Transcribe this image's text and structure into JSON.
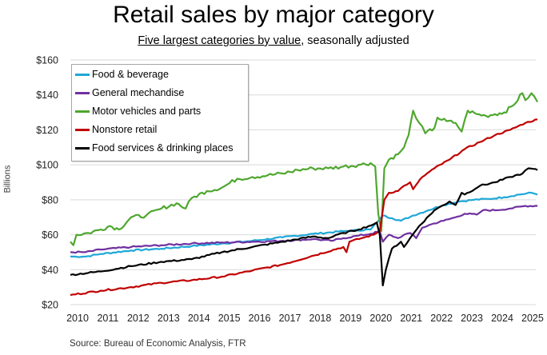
{
  "chart_data": {
    "type": "line",
    "title": "Retail sales by major category",
    "subtitle_underlined": "Five largest categories by value",
    "subtitle_rest": ", seasonally adjusted",
    "xlabel": "",
    "ylabel": "Billions",
    "source": "Source: Bureau of Economic Analysis, FTR",
    "ylim": [
      20,
      160
    ],
    "xlim": [
      2010.0,
      2025.4
    ],
    "y_ticks": [
      20,
      40,
      60,
      80,
      100,
      120,
      140,
      160
    ],
    "y_tick_labels": [
      "$20",
      "$40",
      "$60",
      "$80",
      "$100",
      "$120",
      "$140",
      "$160"
    ],
    "x_tick_labels": [
      "2010",
      "2011",
      "2012",
      "2013",
      "2014",
      "2015",
      "2016",
      "2017",
      "2018",
      "2019",
      "2020",
      "2021",
      "2022",
      "2023",
      "2024",
      "2025"
    ],
    "grid": true,
    "legend_position": "top-left",
    "series": [
      {
        "name": "Food & beverage",
        "color": "#1ea7d8",
        "points": [
          [
            2010.0,
            47.5
          ],
          [
            2010.5,
            47.5
          ],
          [
            2011.0,
            49
          ],
          [
            2012.0,
            51
          ],
          [
            2013.0,
            52
          ],
          [
            2014.0,
            53.5
          ],
          [
            2015.0,
            55
          ],
          [
            2016.0,
            56.5
          ],
          [
            2017.0,
            58.5
          ],
          [
            2018.0,
            60.5
          ],
          [
            2019.0,
            62
          ],
          [
            2019.9,
            63
          ],
          [
            2020.2,
            69
          ],
          [
            2020.3,
            71
          ],
          [
            2020.6,
            69.5
          ],
          [
            2020.9,
            68
          ],
          [
            2021.3,
            71
          ],
          [
            2021.8,
            74
          ],
          [
            2022.3,
            77
          ],
          [
            2022.8,
            79
          ],
          [
            2023.3,
            80
          ],
          [
            2023.8,
            80.5
          ],
          [
            2024.3,
            81.5
          ],
          [
            2024.8,
            83
          ],
          [
            2025.2,
            84
          ],
          [
            2025.4,
            83
          ]
        ]
      },
      {
        "name": "General mechandise",
        "color": "#7030a0",
        "points": [
          [
            2010.0,
            50
          ],
          [
            2010.5,
            50
          ],
          [
            2011.0,
            51.5
          ],
          [
            2012.0,
            53
          ],
          [
            2013.0,
            54
          ],
          [
            2014.0,
            55
          ],
          [
            2015.0,
            55.5
          ],
          [
            2016.0,
            56
          ],
          [
            2017.0,
            56.5
          ],
          [
            2018.0,
            57.5
          ],
          [
            2018.6,
            56.5
          ],
          [
            2019.0,
            58
          ],
          [
            2019.5,
            59.5
          ],
          [
            2019.9,
            60.5
          ],
          [
            2020.2,
            62
          ],
          [
            2020.3,
            56
          ],
          [
            2020.5,
            60
          ],
          [
            2020.8,
            58
          ],
          [
            2021.0,
            60
          ],
          [
            2021.2,
            61
          ],
          [
            2021.4,
            58
          ],
          [
            2021.6,
            64
          ],
          [
            2021.9,
            66
          ],
          [
            2022.3,
            68
          ],
          [
            2022.7,
            70
          ],
          [
            2023.0,
            72
          ],
          [
            2023.4,
            71.5
          ],
          [
            2023.6,
            74
          ],
          [
            2024.0,
            74
          ],
          [
            2024.5,
            75
          ],
          [
            2025.0,
            76.5
          ],
          [
            2025.4,
            76.5
          ]
        ]
      },
      {
        "name": "Motor vehicles and parts",
        "color": "#4ea72e",
        "points": [
          [
            2010.0,
            56
          ],
          [
            2010.1,
            54
          ],
          [
            2010.2,
            60
          ],
          [
            2010.6,
            61
          ],
          [
            2011.0,
            63
          ],
          [
            2011.3,
            65
          ],
          [
            2011.6,
            63
          ],
          [
            2012.0,
            70
          ],
          [
            2012.5,
            71
          ],
          [
            2013.0,
            75
          ],
          [
            2013.5,
            78
          ],
          [
            2013.8,
            75
          ],
          [
            2014.0,
            81
          ],
          [
            2014.5,
            85
          ],
          [
            2015.0,
            87
          ],
          [
            2015.5,
            92
          ],
          [
            2016.0,
            93
          ],
          [
            2016.5,
            94
          ],
          [
            2017.0,
            95
          ],
          [
            2017.5,
            97
          ],
          [
            2018.0,
            98
          ],
          [
            2018.5,
            98
          ],
          [
            2019.0,
            99
          ],
          [
            2019.5,
            100
          ],
          [
            2019.9,
            101
          ],
          [
            2020.05,
            99
          ],
          [
            2020.15,
            72
          ],
          [
            2020.25,
            62
          ],
          [
            2020.35,
            98
          ],
          [
            2020.5,
            103
          ],
          [
            2020.8,
            106
          ],
          [
            2021.0,
            110
          ],
          [
            2021.15,
            117
          ],
          [
            2021.3,
            131
          ],
          [
            2021.5,
            124
          ],
          [
            2021.7,
            118
          ],
          [
            2022.0,
            121
          ],
          [
            2022.1,
            127
          ],
          [
            2022.4,
            125
          ],
          [
            2022.7,
            124
          ],
          [
            2022.9,
            119
          ],
          [
            2023.1,
            131
          ],
          [
            2023.4,
            129
          ],
          [
            2023.7,
            128
          ],
          [
            2024.0,
            129
          ],
          [
            2024.3,
            130
          ],
          [
            2024.6,
            134
          ],
          [
            2024.9,
            141
          ],
          [
            2025.0,
            137
          ],
          [
            2025.2,
            141
          ],
          [
            2025.4,
            136
          ]
        ]
      },
      {
        "name": "Nonstore retail",
        "color": "#c00000",
        "points": [
          [
            2010.0,
            25.5
          ],
          [
            2011.0,
            28
          ],
          [
            2012.0,
            30
          ],
          [
            2013.0,
            32.5
          ],
          [
            2014.0,
            34
          ],
          [
            2015.0,
            36
          ],
          [
            2016.0,
            39.5
          ],
          [
            2017.0,
            43
          ],
          [
            2018.0,
            48
          ],
          [
            2019.0,
            53
          ],
          [
            2019.1,
            50
          ],
          [
            2019.2,
            56
          ],
          [
            2019.6,
            58
          ],
          [
            2020.0,
            60
          ],
          [
            2020.2,
            62
          ],
          [
            2020.35,
            80
          ],
          [
            2020.5,
            84
          ],
          [
            2020.8,
            85
          ],
          [
            2021.0,
            88
          ],
          [
            2021.2,
            90
          ],
          [
            2021.3,
            86
          ],
          [
            2021.6,
            93
          ],
          [
            2022.0,
            98
          ],
          [
            2022.5,
            103
          ],
          [
            2023.0,
            109
          ],
          [
            2023.5,
            113
          ],
          [
            2024.0,
            117
          ],
          [
            2024.5,
            120
          ],
          [
            2025.0,
            124
          ],
          [
            2025.4,
            126
          ]
        ]
      },
      {
        "name": "Food services & drinking places",
        "color": "#000000",
        "points": [
          [
            2010.0,
            37
          ],
          [
            2011.0,
            39
          ],
          [
            2012.0,
            42
          ],
          [
            2013.0,
            44.5
          ],
          [
            2014.0,
            46
          ],
          [
            2015.0,
            50
          ],
          [
            2016.0,
            53
          ],
          [
            2017.0,
            56
          ],
          [
            2018.0,
            59
          ],
          [
            2018.5,
            58
          ],
          [
            2019.0,
            61
          ],
          [
            2019.5,
            63
          ],
          [
            2020.0,
            66
          ],
          [
            2020.1,
            67
          ],
          [
            2020.2,
            60
          ],
          [
            2020.3,
            31
          ],
          [
            2020.4,
            40
          ],
          [
            2020.6,
            52
          ],
          [
            2020.9,
            56
          ],
          [
            2021.0,
            53
          ],
          [
            2021.2,
            58
          ],
          [
            2021.5,
            65
          ],
          [
            2022.0,
            74
          ],
          [
            2022.5,
            79
          ],
          [
            2022.7,
            77
          ],
          [
            2022.9,
            84
          ],
          [
            2023.0,
            83
          ],
          [
            2023.5,
            88
          ],
          [
            2024.0,
            90
          ],
          [
            2024.5,
            93
          ],
          [
            2024.9,
            95
          ],
          [
            2025.1,
            98
          ],
          [
            2025.4,
            97
          ]
        ]
      }
    ]
  }
}
